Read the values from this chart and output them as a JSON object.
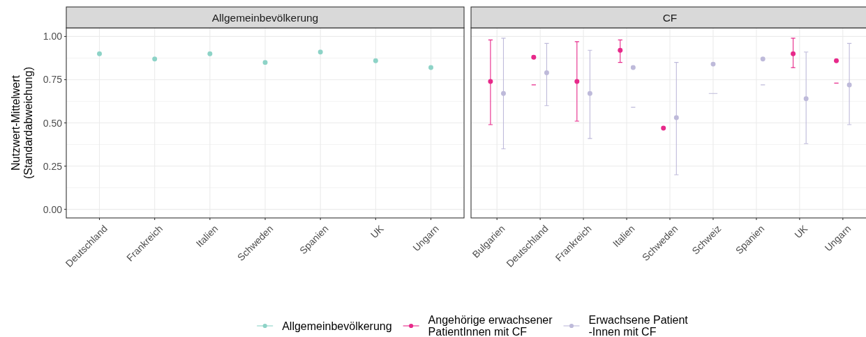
{
  "chart_data": [
    {
      "type": "scatter",
      "title": "Allgemeinbevölkerung",
      "ylabel": "Nutzwert-Mittelwert\n(Standardabweichung)",
      "categories": [
        "Deutschland",
        "Frankreich",
        "Italien",
        "Schweden",
        "Spanien",
        "UK",
        "Ungarn"
      ],
      "series": [
        {
          "name": "Allgemeinbevölkerung",
          "color": "#8dd3c7",
          "values": [
            0.9,
            0.87,
            0.9,
            0.85,
            0.91,
            0.86,
            0.82
          ]
        }
      ],
      "ylim": [
        -0.05,
        1.05
      ],
      "yticks": [
        {
          "value": 0,
          "label": "0.00"
        },
        {
          "value": 0.25,
          "label": "0.25"
        },
        {
          "value": 0.5,
          "label": "0.50"
        },
        {
          "value": 0.75,
          "label": "0.75"
        },
        {
          "value": 1,
          "label": "1.00"
        }
      ],
      "grid": true,
      "legend": "bottom",
      "marker": "circle"
    },
    {
      "type": "scatter",
      "title": "CF",
      "categories": [
        "Bulgarien",
        "Deutschland",
        "Frankreich",
        "Italien",
        "Schweden",
        "Schweiz",
        "Spanien",
        "UK",
        "Ungarn"
      ],
      "series": [
        {
          "name": "Angehörige erwachsener\nPatientInnen mit CF",
          "color": "#e7298a",
          "x": [
            "Bulgarien",
            "Deutschland",
            "Frankreich",
            "Italien",
            "Schweden",
            "Spanien",
            "UK",
            "Ungarn"
          ],
          "values": [
            0.74,
            0.88,
            0.74,
            0.92,
            0.47,
            null,
            0.9,
            0.86
          ],
          "errors": [
            [
              0.49,
              0.98
            ],
            [
              0.72,
              0.72
            ],
            [
              0.51,
              0.97
            ],
            [
              0.85,
              0.98
            ],
            null,
            null,
            [
              0.82,
              0.99
            ],
            [
              0.73,
              0.73
            ]
          ]
        },
        {
          "name": "Erwachsene Patient\n-Innen mit CF",
          "color": "#bebada",
          "values": [
            0.67,
            0.79,
            0.67,
            0.82,
            0.53,
            0.84,
            0.87,
            0.64,
            0.72
          ],
          "errors": [
            [
              0.35,
              0.99
            ],
            [
              0.6,
              0.96
            ],
            [
              0.41,
              0.92
            ],
            [
              0.59,
              0.59
            ],
            [
              0.2,
              0.85
            ],
            [
              0.67,
              0.67
            ],
            [
              0.72,
              0.72
            ],
            [
              0.38,
              0.91
            ],
            [
              0.49,
              0.96
            ]
          ]
        }
      ],
      "ylim": [
        -0.05,
        1.05
      ],
      "yticks": [
        0,
        0.25,
        0.5,
        0.75,
        1
      ],
      "tick_labels": "x",
      "grid": true,
      "legend": "bottom",
      "marker": "circle"
    }
  ]
}
